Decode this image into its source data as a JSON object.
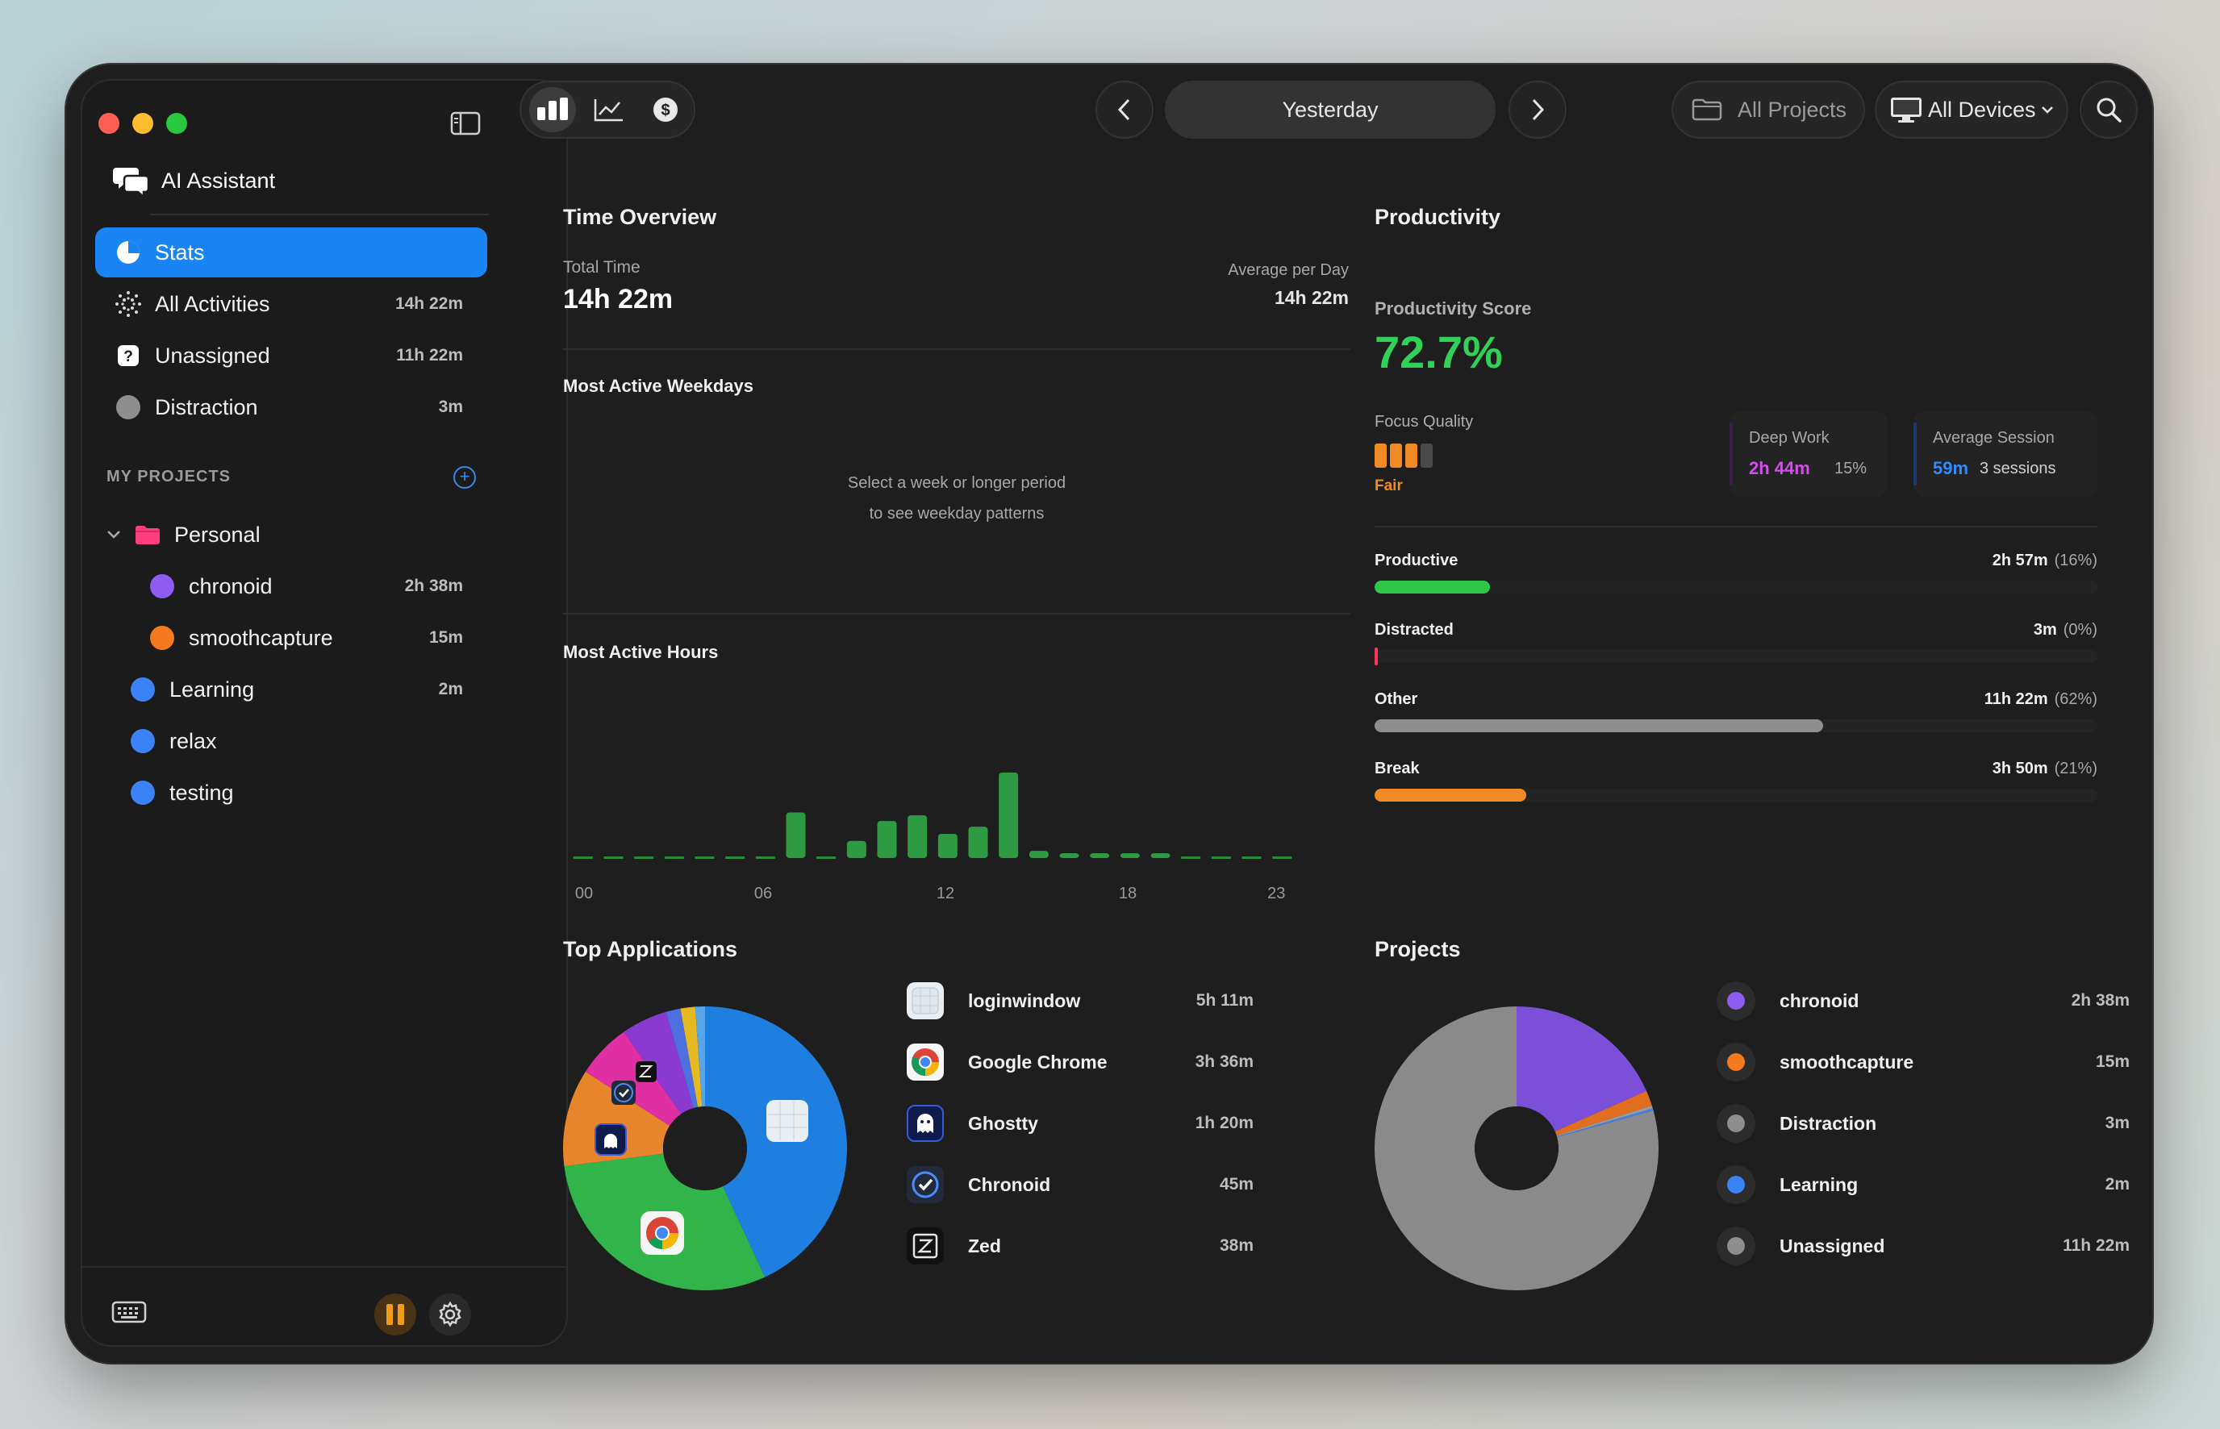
{
  "sidebar": {
    "ai_assistant": "AI Assistant",
    "nav": [
      {
        "label": "Stats",
        "value": ""
      },
      {
        "label": "All Activities",
        "value": "14h 22m"
      },
      {
        "label": "Unassigned",
        "value": "11h 22m"
      },
      {
        "label": "Distraction",
        "value": "3m"
      }
    ],
    "projects_title": "MY PROJECTS",
    "projects": [
      {
        "label": "Personal",
        "value": "",
        "color": "#ff3d7f"
      },
      {
        "label": "chronoid",
        "value": "2h 38m",
        "color": "#8e5cf0"
      },
      {
        "label": "smoothcapture",
        "value": "15m",
        "color": "#f5791f"
      },
      {
        "label": "Learning",
        "value": "2m",
        "color": "#3b82f6"
      },
      {
        "label": "relax",
        "value": "",
        "color": "#3b82f6"
      },
      {
        "label": "testing",
        "value": "",
        "color": "#3b82f6"
      }
    ]
  },
  "toolbar": {
    "date_label": "Yesterday",
    "projects_filter": "All Projects",
    "devices_filter": "All Devices"
  },
  "time_overview": {
    "title": "Time Overview",
    "total_label": "Total Time",
    "total_value": "14h 22m",
    "avg_label": "Average per Day",
    "avg_value": "14h 22m",
    "weekdays_title": "Most Active Weekdays",
    "weekdays_msg1": "Select a week or longer period",
    "weekdays_msg2": "to see weekday patterns",
    "hours_title": "Most Active Hours",
    "hour_ticks": [
      "00",
      "06",
      "12",
      "18",
      "23"
    ]
  },
  "chart_data": {
    "type": "bar",
    "categories": [
      "0",
      "1",
      "2",
      "3",
      "4",
      "5",
      "6",
      "7",
      "8",
      "9",
      "10",
      "11",
      "12",
      "13",
      "14",
      "15",
      "16",
      "17",
      "18",
      "19",
      "20",
      "21",
      "22",
      "23"
    ],
    "values": [
      0,
      0,
      0,
      0,
      0,
      0,
      0,
      32,
      0,
      12,
      26,
      30,
      17,
      22,
      60,
      5,
      2,
      2,
      3,
      1,
      0,
      0,
      0,
      0
    ],
    "xlabel": "",
    "ylabel": ""
  },
  "productivity": {
    "title": "Productivity",
    "score_label": "Productivity Score",
    "score_value": "72.7%",
    "focus_label": "Focus Quality",
    "focus_rating": "Fair",
    "focus_level": 3,
    "focus_max": 4,
    "deep_work_label": "Deep Work",
    "deep_work_value": "2h 44m",
    "deep_work_pct": "15%",
    "avg_session_label": "Average Session",
    "avg_session_value": "59m",
    "avg_session_count": "3 sessions",
    "bars": [
      {
        "label": "Productive",
        "value": "2h 57m",
        "pct": "(16%)",
        "fraction": 0.16,
        "color": "#2fc84a"
      },
      {
        "label": "Distracted",
        "value": "3m",
        "pct": "(0%)",
        "fraction": 0.003,
        "color": "#ff375f"
      },
      {
        "label": "Other",
        "value": "11h 22m",
        "pct": "(62%)",
        "fraction": 0.62,
        "color": "#8e8e8e"
      },
      {
        "label": "Break",
        "value": "3h 50m",
        "pct": "(21%)",
        "fraction": 0.21,
        "color": "#f08a24"
      }
    ]
  },
  "top_apps": {
    "title": "Top Applications",
    "items": [
      {
        "name": "loginwindow",
        "time": "5h 11m",
        "icon": "loginwindow-icon"
      },
      {
        "name": "Google Chrome",
        "time": "3h 36m",
        "icon": "chrome-icon"
      },
      {
        "name": "Ghostty",
        "time": "1h 20m",
        "icon": "ghostty-icon"
      },
      {
        "name": "Chronoid",
        "time": "45m",
        "icon": "chronoid-icon"
      },
      {
        "name": "Zed",
        "time": "38m",
        "icon": "zed-icon"
      }
    ]
  },
  "projects_card": {
    "title": "Projects",
    "items": [
      {
        "name": "chronoid",
        "time": "2h 38m",
        "color": "#8e5cf0"
      },
      {
        "name": "smoothcapture",
        "time": "15m",
        "color": "#f5791f"
      },
      {
        "name": "Distraction",
        "time": "3m",
        "color": "#8e8e8e"
      },
      {
        "name": "Learning",
        "time": "2m",
        "color": "#3b82f6"
      },
      {
        "name": "Unassigned",
        "time": "11h 22m",
        "color": "#8e8e8e"
      }
    ]
  },
  "app_pie": [
    {
      "label": "loginwindow",
      "minutes": 311,
      "color": "#1f7fe0"
    },
    {
      "label": "Google Chrome",
      "minutes": 216,
      "color": "#31b54b"
    },
    {
      "label": "Ghostty",
      "minutes": 80,
      "color": "#e8852c"
    },
    {
      "label": "Chronoid",
      "minutes": 45,
      "color": "#e02fa2"
    },
    {
      "label": "Zed",
      "minutes": 38,
      "color": "#8b3ad1"
    },
    {
      "label": "",
      "minutes": 12,
      "color": "#4d6fe0"
    },
    {
      "label": "",
      "minutes": 12,
      "color": "#e6b822"
    },
    {
      "label": "",
      "minutes": 8,
      "color": "#58a6e8"
    }
  ],
  "project_pie": [
    {
      "label": "chronoid",
      "minutes": 158,
      "color": "#7b4fd8"
    },
    {
      "label": "smoothcapture",
      "minutes": 15,
      "color": "#e06e1e"
    },
    {
      "label": "Distraction",
      "minutes": 3,
      "color": "#9a9a9a"
    },
    {
      "label": "Learning",
      "minutes": 2,
      "color": "#3b82f6"
    },
    {
      "label": "Unassigned",
      "minutes": 682,
      "color": "#8a8a8a"
    }
  ]
}
